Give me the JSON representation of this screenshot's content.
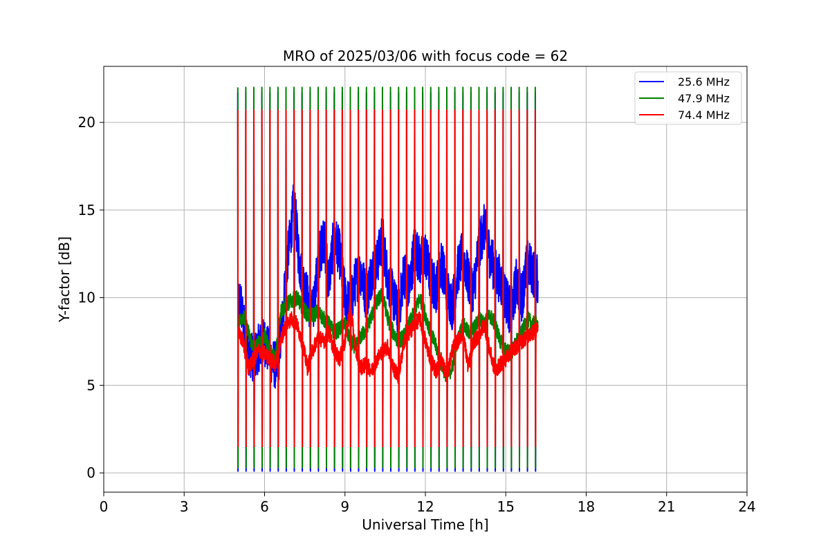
{
  "chart_data": {
    "type": "line",
    "title": "MRO of 2025/03/06 with focus code = 62",
    "xlabel": "Universal Time [h]",
    "ylabel": "Y-factor [dB]",
    "xlim": [
      0,
      24
    ],
    "ylim": [
      -1.1,
      23.2
    ],
    "xticks": [
      0,
      3,
      6,
      9,
      12,
      15,
      18,
      21,
      24
    ],
    "xtick_labels": [
      "0",
      "3",
      "6",
      "9",
      "12",
      "15",
      "18",
      "21",
      "24"
    ],
    "yticks": [
      0,
      5,
      10,
      15,
      20
    ],
    "ytick_labels": [
      "0",
      "5",
      "10",
      "15",
      "20"
    ],
    "grid": true,
    "legend_position": "top-right",
    "cycle": {
      "start_h": 5.0,
      "end_h": 16.1,
      "period_h": 0.3,
      "calibration_duration_h": 0.02
    },
    "series": [
      {
        "name": "25.6 MHz",
        "color": "#0000ff",
        "calibration_high": 21.7,
        "calibration_low": 0.1,
        "x": [
          5.0,
          5.1,
          5.2,
          5.4,
          5.6,
          5.8,
          6.0,
          6.3,
          6.5,
          6.7,
          6.8,
          7.0,
          7.1,
          7.3,
          7.5,
          7.8,
          8.0,
          8.2,
          8.4,
          8.6,
          8.8,
          9.0,
          9.2,
          9.4,
          9.6,
          9.8,
          10.0,
          10.2,
          10.4,
          10.6,
          10.8,
          11.0,
          11.2,
          11.4,
          11.6,
          11.8,
          12.0,
          12.2,
          12.4,
          12.6,
          12.8,
          13.0,
          13.2,
          13.4,
          13.6,
          13.8,
          14.0,
          14.2,
          14.4,
          14.6,
          14.8,
          15.0,
          15.2,
          15.4,
          15.6,
          15.8,
          16.0,
          16.2
        ],
        "y": [
          9.0,
          10.0,
          8.5,
          7.0,
          6.5,
          7.2,
          7.5,
          6.3,
          6.0,
          9.5,
          11.5,
          14.0,
          15.5,
          12.0,
          10.5,
          9.0,
          12.0,
          13.5,
          11.0,
          13.5,
          12.5,
          10.0,
          9.5,
          11.0,
          11.5,
          10.0,
          11.5,
          12.0,
          13.5,
          11.0,
          10.0,
          9.0,
          11.5,
          10.5,
          13.0,
          12.0,
          12.5,
          11.0,
          10.5,
          12.0,
          10.5,
          9.5,
          11.5,
          12.5,
          11.0,
          10.5,
          13.0,
          14.0,
          12.5,
          11.5,
          11.0,
          10.0,
          9.0,
          11.0,
          10.0,
          12.0,
          11.5,
          11.0
        ]
      },
      {
        "name": "47.9 MHz",
        "color": "#008000",
        "calibration_high": 22.0,
        "calibration_low": 0.3,
        "x": [
          5.0,
          5.2,
          5.4,
          5.6,
          5.8,
          6.0,
          6.2,
          6.4,
          6.6,
          6.8,
          7.0,
          7.2,
          7.4,
          7.6,
          7.8,
          8.0,
          8.2,
          8.4,
          8.6,
          8.8,
          9.0,
          9.2,
          9.4,
          9.6,
          9.8,
          10.0,
          10.2,
          10.4,
          10.6,
          10.8,
          11.0,
          11.2,
          11.4,
          11.6,
          11.8,
          12.0,
          12.2,
          12.4,
          12.6,
          12.8,
          13.0,
          13.2,
          13.4,
          13.6,
          13.8,
          14.0,
          14.2,
          14.4,
          14.6,
          14.8,
          15.0,
          15.2,
          15.4,
          15.6,
          15.8,
          16.0,
          16.2
        ],
        "y": [
          8.5,
          9.0,
          8.0,
          7.0,
          7.5,
          7.8,
          7.0,
          6.5,
          9.2,
          9.6,
          9.8,
          10.0,
          9.5,
          9.0,
          9.0,
          9.2,
          8.8,
          8.5,
          8.0,
          8.2,
          8.5,
          7.5,
          7.2,
          7.8,
          8.2,
          9.0,
          9.8,
          10.2,
          8.8,
          8.0,
          7.5,
          7.8,
          8.5,
          9.2,
          10.0,
          9.0,
          8.0,
          7.2,
          6.2,
          5.5,
          6.0,
          7.5,
          8.5,
          8.0,
          8.2,
          8.8,
          8.5,
          9.0,
          8.5,
          7.5,
          7.0,
          6.8,
          7.5,
          8.0,
          8.8,
          8.5,
          8.5
        ]
      },
      {
        "name": "74.4 MHz",
        "color": "#ff0000",
        "calibration_high": 20.7,
        "calibration_low": 1.5,
        "x": [
          5.0,
          5.2,
          5.4,
          5.6,
          5.8,
          6.0,
          6.2,
          6.4,
          6.6,
          6.8,
          7.0,
          7.2,
          7.4,
          7.6,
          7.8,
          8.0,
          8.2,
          8.4,
          8.6,
          8.8,
          9.0,
          9.2,
          9.4,
          9.6,
          9.8,
          10.0,
          10.2,
          10.4,
          10.6,
          10.8,
          11.0,
          11.2,
          11.4,
          11.6,
          11.8,
          12.0,
          12.2,
          12.4,
          12.6,
          12.8,
          13.0,
          13.2,
          13.4,
          13.6,
          13.8,
          14.0,
          14.2,
          14.4,
          14.6,
          14.8,
          15.0,
          15.2,
          15.4,
          15.6,
          15.8,
          16.0,
          16.2
        ],
        "y": [
          8.0,
          7.5,
          6.0,
          6.5,
          7.0,
          6.8,
          6.5,
          6.2,
          7.5,
          8.5,
          8.8,
          8.5,
          7.5,
          6.0,
          7.0,
          7.8,
          7.5,
          8.0,
          7.0,
          6.5,
          7.5,
          9.5,
          7.0,
          6.0,
          6.2,
          5.8,
          6.5,
          7.0,
          7.2,
          6.0,
          5.5,
          7.5,
          8.0,
          8.5,
          8.8,
          7.5,
          6.5,
          5.8,
          6.5,
          5.5,
          7.0,
          7.5,
          8.0,
          6.0,
          7.5,
          7.8,
          8.5,
          7.0,
          5.8,
          6.2,
          6.5,
          7.0,
          7.2,
          7.5,
          7.8,
          8.0,
          8.2
        ]
      }
    ]
  }
}
